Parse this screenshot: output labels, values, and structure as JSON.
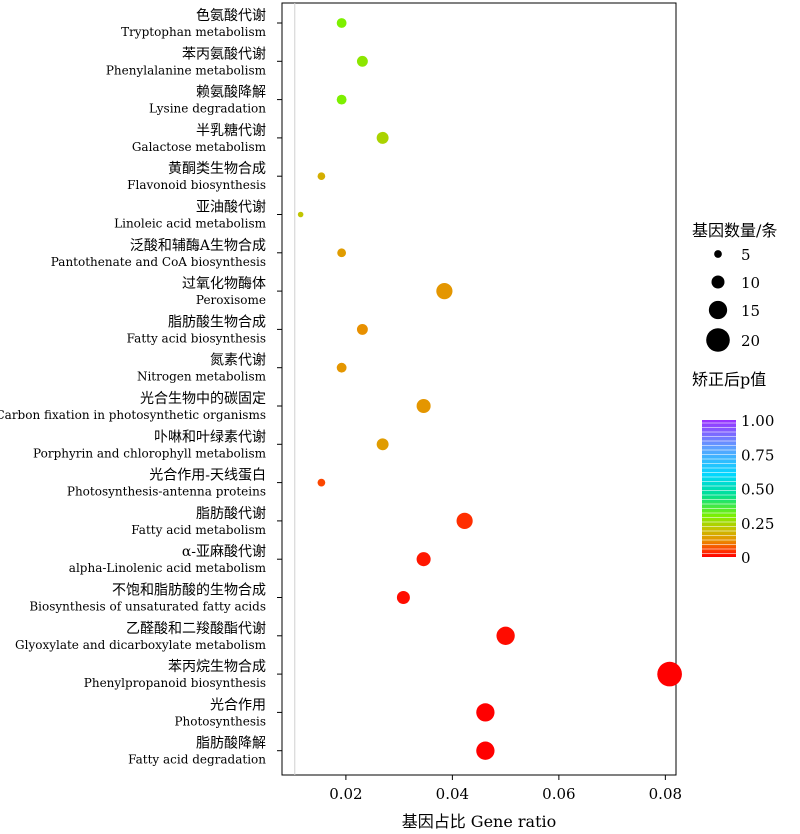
{
  "chart_data": {
    "type": "scatter",
    "xlabel": "基因占比 Gene ratio",
    "xlim": [
      0.008,
      0.082
    ],
    "xticks": [
      {
        "value": 0.02,
        "label": "0.02"
      },
      {
        "value": 0.04,
        "label": "0.04"
      },
      {
        "value": 0.06,
        "label": "0.06"
      },
      {
        "value": 0.08,
        "label": "0.08"
      }
    ],
    "grid": false,
    "categories": [
      {
        "zh": "色氨酸代谢",
        "en": "Tryptophan metabolism",
        "gene_ratio": 0.0192,
        "gene_count": 7,
        "padj": 0.3
      },
      {
        "zh": "苯丙氨酸代谢",
        "en": "Phenylalanine metabolism",
        "gene_ratio": 0.0231,
        "gene_count": 8,
        "padj": 0.28
      },
      {
        "zh": "赖氨酸降解",
        "en": "Lysine degradation",
        "gene_ratio": 0.0192,
        "gene_count": 7,
        "padj": 0.3
      },
      {
        "zh": "半乳糖代谢",
        "en": "Galactose metabolism",
        "gene_ratio": 0.0269,
        "gene_count": 9,
        "padj": 0.24
      },
      {
        "zh": "黄酮类生物合成",
        "en": "Flavonoid biosynthesis",
        "gene_ratio": 0.0154,
        "gene_count": 5,
        "padj": 0.17
      },
      {
        "zh": "亚油酸代谢",
        "en": "Linoleic acid metabolism",
        "gene_ratio": 0.0115,
        "gene_count": 3,
        "padj": 0.21
      },
      {
        "zh": "泛酸和辅酶A生物合成",
        "en": "Pantothenate and CoA biosynthesis",
        "gene_ratio": 0.0192,
        "gene_count": 6,
        "padj": 0.14
      },
      {
        "zh": "过氧化物酶体",
        "en": "Peroxisome",
        "gene_ratio": 0.0385,
        "gene_count": 13,
        "padj": 0.13
      },
      {
        "zh": "脂肪酸生物合成",
        "en": "Fatty acid biosynthesis",
        "gene_ratio": 0.0231,
        "gene_count": 8,
        "padj": 0.12
      },
      {
        "zh": "氮素代谢",
        "en": "Nitrogen metabolism",
        "gene_ratio": 0.0192,
        "gene_count": 7,
        "padj": 0.13
      },
      {
        "zh": "光合生物中的碳固定",
        "en": "Carbon fixation in photosynthetic organisms",
        "gene_ratio": 0.0346,
        "gene_count": 11,
        "padj": 0.13
      },
      {
        "zh": "卟啉和叶绿素代谢",
        "en": "Porphyrin and chlorophyll metabolism",
        "gene_ratio": 0.0269,
        "gene_count": 9,
        "padj": 0.14
      },
      {
        "zh": "光合作用-天线蛋白",
        "en": "Photosynthesis-antenna proteins",
        "gene_ratio": 0.0154,
        "gene_count": 5,
        "padj": 0.06
      },
      {
        "zh": "脂肪酸代谢",
        "en": "Fatty acid metabolism",
        "gene_ratio": 0.0423,
        "gene_count": 13,
        "padj": 0.04
      },
      {
        "zh": "α-亚麻酸代谢",
        "en": "alpha-Linolenic acid metabolism",
        "gene_ratio": 0.0346,
        "gene_count": 11,
        "padj": 0.02
      },
      {
        "zh": "不饱和脂肪酸的生物合成",
        "en": "Biosynthesis of unsaturated fatty acids",
        "gene_ratio": 0.0308,
        "gene_count": 10,
        "padj": 0.01
      },
      {
        "zh": "乙醛酸和二羧酸酯代谢",
        "en": "Glyoxylate and dicarboxylate metabolism",
        "gene_ratio": 0.05,
        "gene_count": 15,
        "padj": 0.01
      },
      {
        "zh": "苯丙烷生物合成",
        "en": "Phenylpropanoid biosynthesis",
        "gene_ratio": 0.0808,
        "gene_count": 21,
        "padj": 0.0
      },
      {
        "zh": "光合作用",
        "en": "Photosynthesis",
        "gene_ratio": 0.0462,
        "gene_count": 15,
        "padj": 0.0
      },
      {
        "zh": "脂肪酸降解",
        "en": "Fatty acid degradation",
        "gene_ratio": 0.0462,
        "gene_count": 15,
        "padj": 0.0
      }
    ],
    "size_legend": {
      "title": "基因数量/条",
      "values": [
        5,
        10,
        15,
        20
      ]
    },
    "color_legend": {
      "title": "矫正后p值",
      "ticks": [
        {
          "value": 1.0,
          "label": "1.00"
        },
        {
          "value": 0.75,
          "label": "0.75"
        },
        {
          "value": 0.5,
          "label": "0.50"
        },
        {
          "value": 0.25,
          "label": "0.25"
        },
        {
          "value": 0.0,
          "label": "0"
        }
      ],
      "colors": [
        "#ff0000",
        "#ff5a00",
        "#e8a000",
        "#c8c800",
        "#7df000",
        "#00d0a0",
        "#00d8ff",
        "#5fa0ff",
        "#8080ff",
        "#9a30ff"
      ]
    }
  }
}
